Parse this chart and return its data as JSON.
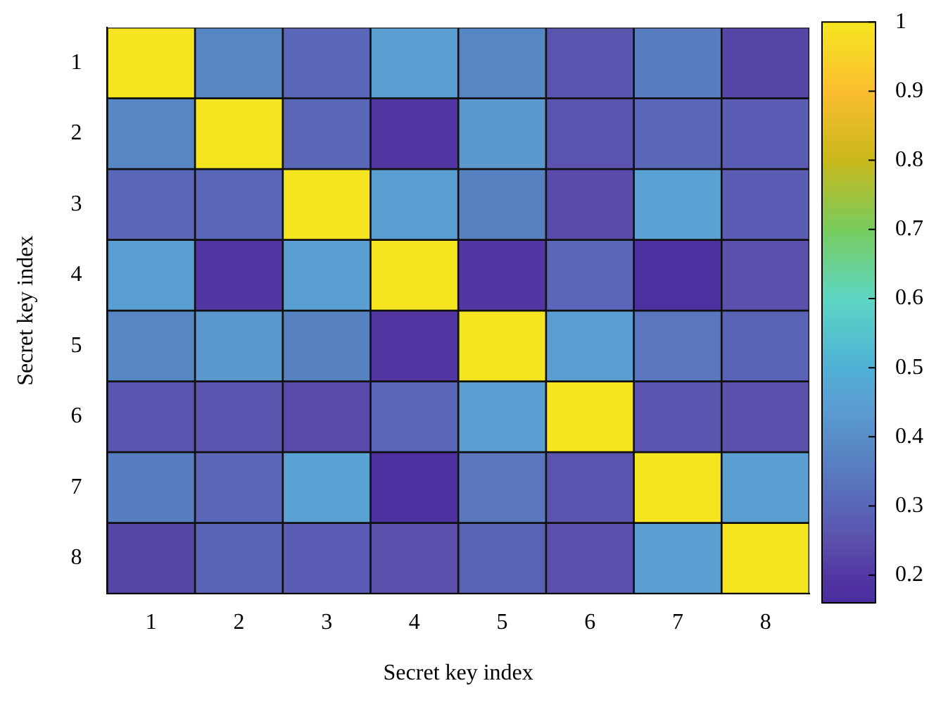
{
  "chart_data": {
    "type": "heatmap",
    "xlabel": "Secret key index",
    "ylabel": "Secret key index",
    "categories": [
      "1",
      "2",
      "3",
      "4",
      "5",
      "6",
      "7",
      "8"
    ],
    "y_categories": [
      "1",
      "2",
      "3",
      "4",
      "5",
      "6",
      "7",
      "8"
    ],
    "cells": [
      [
        1,
        0.38,
        0.3,
        0.45,
        0.38,
        0.26,
        0.36,
        0.23
      ],
      [
        0.38,
        1,
        0.3,
        0.2,
        0.43,
        0.26,
        0.3,
        0.28
      ],
      [
        0.3,
        0.3,
        1,
        0.45,
        0.37,
        0.24,
        0.46,
        0.28
      ],
      [
        0.45,
        0.2,
        0.45,
        1,
        0.2,
        0.3,
        0.18,
        0.25
      ],
      [
        0.38,
        0.43,
        0.37,
        0.2,
        1,
        0.45,
        0.34,
        0.29
      ],
      [
        0.26,
        0.26,
        0.24,
        0.3,
        0.45,
        1,
        0.26,
        0.25
      ],
      [
        0.36,
        0.3,
        0.46,
        0.18,
        0.34,
        0.26,
        1,
        0.45
      ],
      [
        0.23,
        0.29,
        0.28,
        0.25,
        0.29,
        0.25,
        0.45,
        1
      ]
    ],
    "clim": [
      0.16,
      1
    ],
    "cticks": [
      0.2,
      0.3,
      0.4,
      0.5,
      0.6,
      0.7,
      0.8,
      0.9,
      1
    ]
  }
}
